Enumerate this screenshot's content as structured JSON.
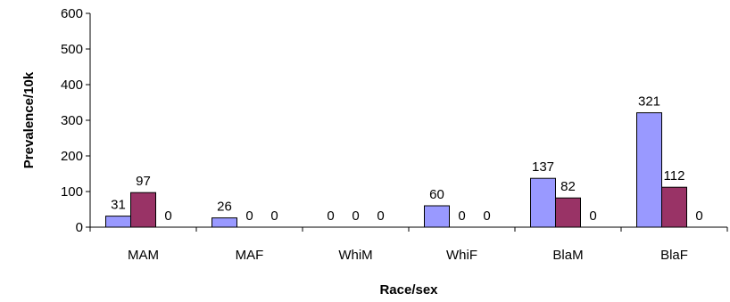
{
  "chart_data": {
    "type": "bar",
    "xlabel": "Race/sex",
    "ylabel": "Prevalence/10k",
    "ylim": [
      0,
      600
    ],
    "yticks": [
      0,
      100,
      200,
      300,
      400,
      500,
      600
    ],
    "grid": false,
    "legend": "none",
    "categories": [
      "MAM",
      "MAF",
      "WhiM",
      "WhiF",
      "BlaM",
      "BlaF"
    ],
    "series": [
      {
        "values": [
          31,
          26,
          0,
          60,
          137,
          321
        ],
        "color": "#9999ff"
      },
      {
        "values": [
          97,
          0,
          0,
          0,
          82,
          112
        ],
        "color": "#993366"
      },
      {
        "values": [
          0,
          0,
          0,
          0,
          0,
          0
        ],
        "color": "#ffffcc"
      }
    ]
  }
}
